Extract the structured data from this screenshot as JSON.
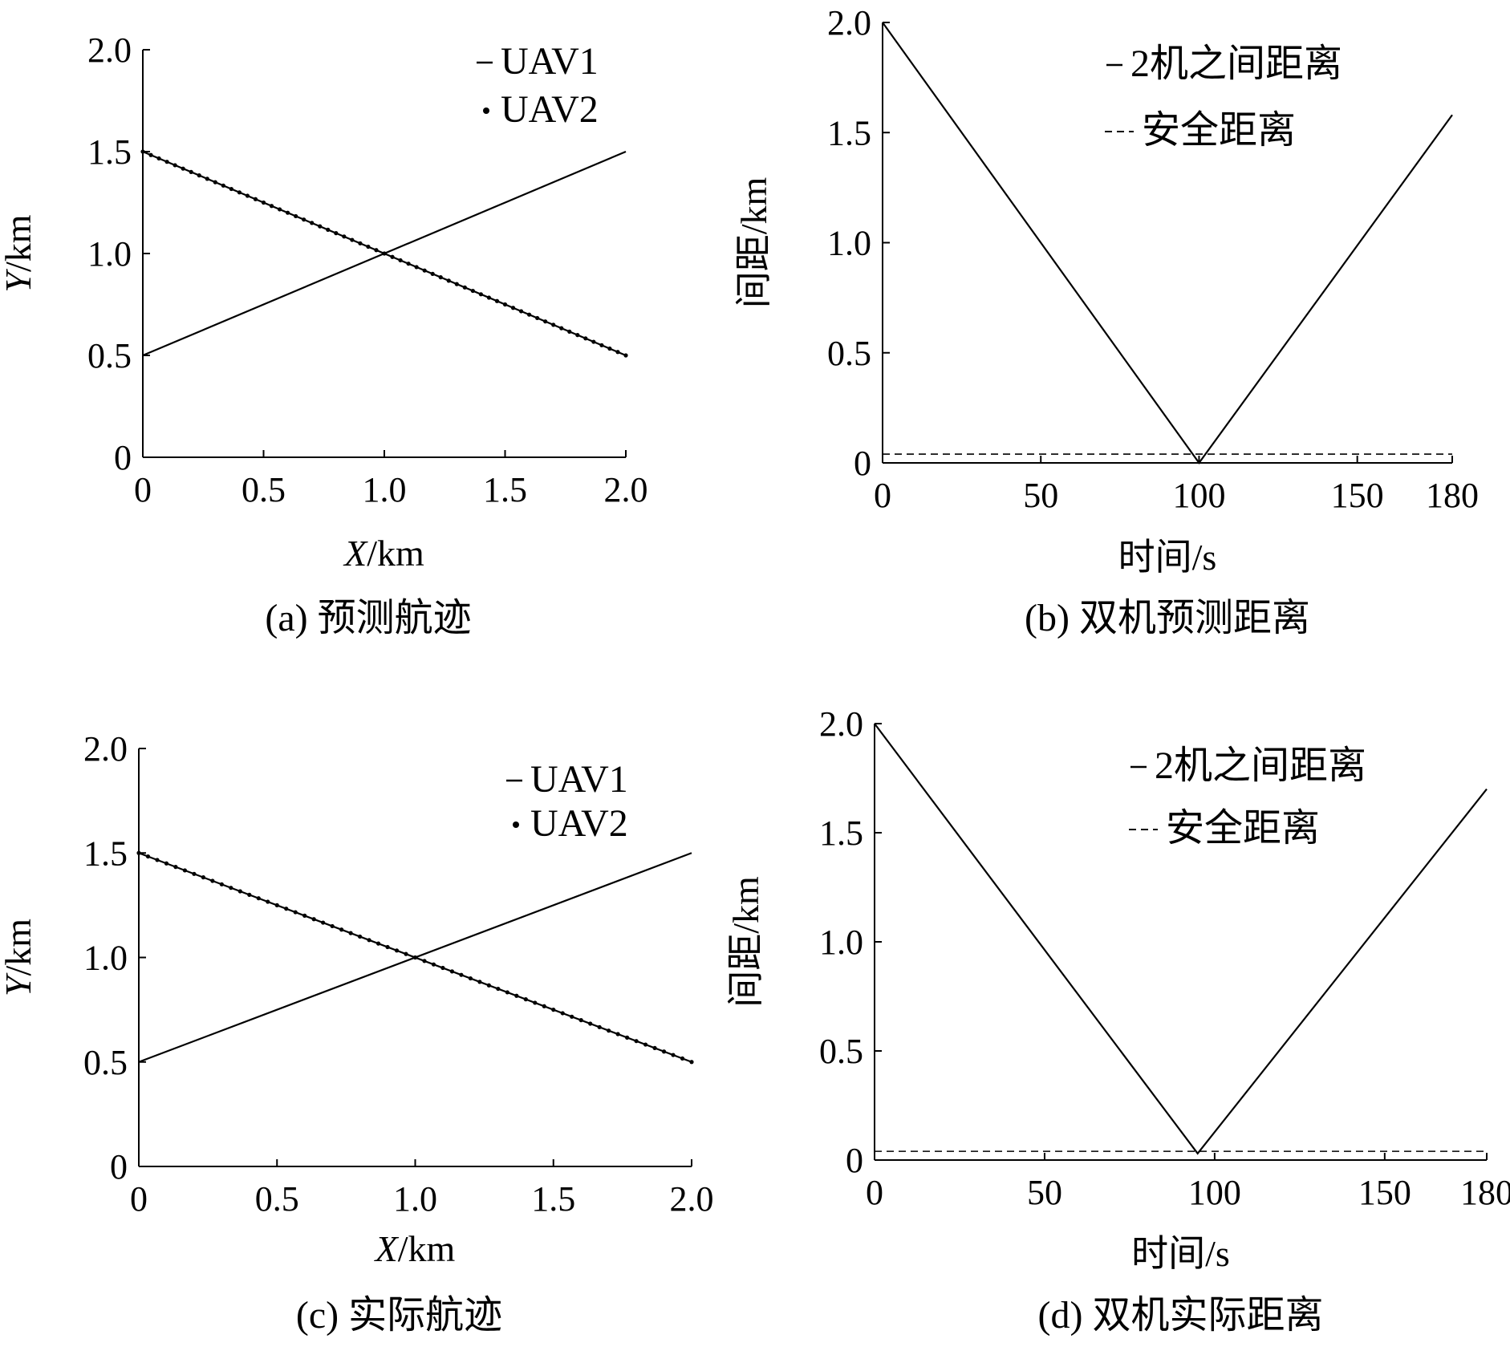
{
  "colors": {
    "ink": "#000000",
    "background": "#ffffff"
  },
  "chart_data": [
    {
      "id": "a",
      "type": "line",
      "caption": "(a) 预测航迹",
      "xlabel_italic": "X",
      "xlabel_unit": "/km",
      "ylabel_italic": "Y",
      "ylabel_unit": "/km",
      "xlim": [
        0,
        2.0
      ],
      "ylim": [
        0,
        2.0
      ],
      "xticks": [
        0,
        0.5,
        1.0,
        1.5,
        2.0
      ],
      "xtick_labels": [
        "0",
        "0.5",
        "1.0",
        "1.5",
        "2.0"
      ],
      "yticks": [
        0,
        0.5,
        1.0,
        1.5,
        2.0
      ],
      "ytick_labels": [
        "0",
        "0.5",
        "1.0",
        "1.5",
        "2.0"
      ],
      "legend_position": "top-right",
      "series": [
        {
          "name": "UAV1",
          "style": "solid",
          "x": [
            0,
            2.0
          ],
          "y": [
            0.5,
            1.5
          ]
        },
        {
          "name": "UAV2",
          "style": "marker-dots",
          "x": [
            0,
            2.0
          ],
          "y": [
            1.5,
            0.5
          ]
        }
      ]
    },
    {
      "id": "b",
      "type": "line",
      "caption": "(b) 双机预测距离",
      "xlabel": "时间/s",
      "ylabel": "间距/km",
      "xlim": [
        0,
        180
      ],
      "ylim": [
        0,
        2.0
      ],
      "xticks": [
        0,
        50,
        100,
        150,
        180
      ],
      "xtick_labels": [
        "0",
        "50",
        "100",
        "150",
        "180"
      ],
      "yticks": [
        0,
        0.5,
        1.0,
        1.5,
        2.0
      ],
      "ytick_labels": [
        "0",
        "0.5",
        "1.0",
        "1.5",
        "2.0"
      ],
      "legend_position": "top-right",
      "series": [
        {
          "name": "2机之间距离",
          "style": "solid",
          "x": [
            0,
            100,
            180
          ],
          "y": [
            2.0,
            0,
            1.58
          ]
        },
        {
          "name": "安全距离",
          "style": "dashed",
          "x": [
            0,
            180
          ],
          "y": [
            0.04,
            0.04
          ]
        }
      ]
    },
    {
      "id": "c",
      "type": "line",
      "caption": "(c) 实际航迹",
      "xlabel_italic": "X",
      "xlabel_unit": "/km",
      "ylabel_italic": "Y",
      "ylabel_unit": "/km",
      "xlim": [
        0,
        2.0
      ],
      "ylim": [
        0,
        2.0
      ],
      "xticks": [
        0,
        0.5,
        1.0,
        1.5,
        2.0
      ],
      "xtick_labels": [
        "0",
        "0.5",
        "1.0",
        "1.5",
        "2.0"
      ],
      "yticks": [
        0,
        0.5,
        1.0,
        1.5,
        2.0
      ],
      "ytick_labels": [
        "0",
        "0.5",
        "1.0",
        "1.5",
        "2.0"
      ],
      "legend_position": "top-right",
      "series": [
        {
          "name": "UAV1",
          "style": "solid",
          "x": [
            0,
            2.0
          ],
          "y": [
            0.5,
            1.5
          ]
        },
        {
          "name": "UAV2",
          "style": "marker-dots",
          "x": [
            0,
            2.0
          ],
          "y": [
            1.5,
            0.5
          ]
        }
      ]
    },
    {
      "id": "d",
      "type": "line",
      "caption": "(d) 双机实际距离",
      "xlabel": "时间/s",
      "ylabel": "间距/km",
      "xlim": [
        0,
        180
      ],
      "ylim": [
        0,
        2.0
      ],
      "xticks": [
        0,
        50,
        100,
        150,
        180
      ],
      "xtick_labels": [
        "0",
        "50",
        "100",
        "150",
        "180"
      ],
      "yticks": [
        0,
        0.5,
        1.0,
        1.5,
        2.0
      ],
      "ytick_labels": [
        "0",
        "0.5",
        "1.0",
        "1.5",
        "2.0"
      ],
      "legend_position": "top-right",
      "series": [
        {
          "name": "2机之间距离",
          "style": "solid",
          "x": [
            0,
            95,
            180
          ],
          "y": [
            2.0,
            0.03,
            1.7
          ]
        },
        {
          "name": "安全距离",
          "style": "dashed",
          "x": [
            0,
            180
          ],
          "y": [
            0.04,
            0.04
          ]
        }
      ]
    }
  ]
}
